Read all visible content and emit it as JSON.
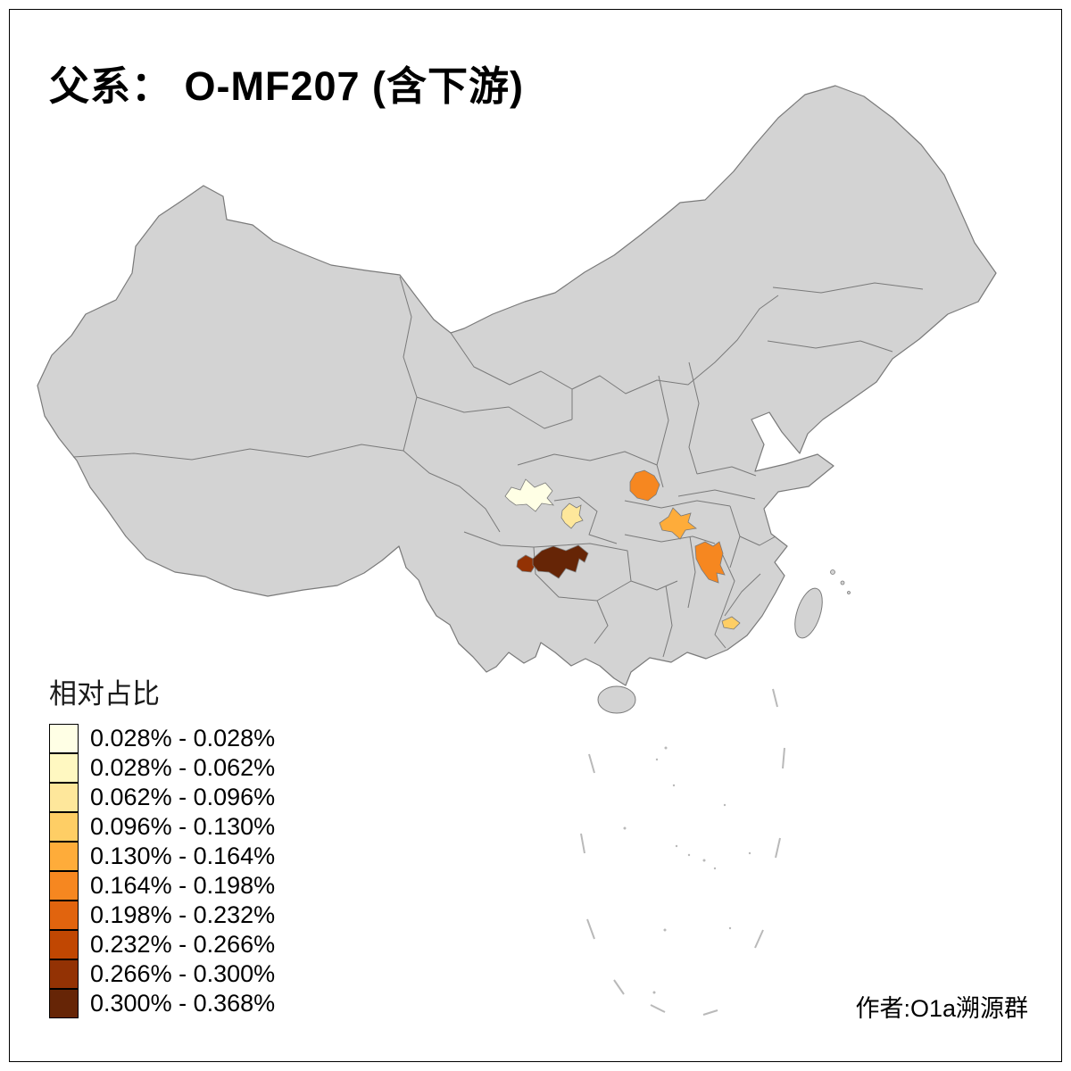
{
  "title": "父系： O-MF207 (含下游)",
  "legend": {
    "title": "相对占比",
    "items": [
      {
        "label": "0.028% - 0.028%",
        "color": "#FFFFE5"
      },
      {
        "label": "0.028% - 0.062%",
        "color": "#FFF8C1"
      },
      {
        "label": "0.062% - 0.096%",
        "color": "#FEE79B"
      },
      {
        "label": "0.096% - 0.130%",
        "color": "#FECE65"
      },
      {
        "label": "0.130% - 0.164%",
        "color": "#FEAC3A"
      },
      {
        "label": "0.164% - 0.198%",
        "color": "#F68720"
      },
      {
        "label": "0.198% - 0.232%",
        "color": "#E1640E"
      },
      {
        "label": "0.232% - 0.266%",
        "color": "#C14702"
      },
      {
        "label": "0.266% - 0.300%",
        "color": "#933204"
      },
      {
        "label": "0.300% - 0.368%",
        "color": "#662506"
      }
    ]
  },
  "credit": "作者:O1a溯源群",
  "map": {
    "land_color": "#d3d3d3",
    "border_color": "#7a7a7a",
    "minor_color": "#b9b9b9",
    "background": "#ffffff",
    "regions": [
      {
        "id": "highlight-region-1",
        "color": "#FFFFE5",
        "legend_class": "0.028% - 0.028%"
      },
      {
        "id": "highlight-region-2",
        "color": "#FEE79B",
        "legend_class": "0.062% - 0.096%"
      },
      {
        "id": "highlight-region-3",
        "color": "#F68720",
        "legend_class": "0.164% - 0.198%"
      },
      {
        "id": "highlight-region-4",
        "color": "#FEAC3A",
        "legend_class": "0.130% - 0.164%"
      },
      {
        "id": "highlight-region-5",
        "color": "#F68720",
        "legend_class": "0.164% - 0.198%"
      },
      {
        "id": "highlight-region-6",
        "color": "#933204",
        "legend_class": "0.266% - 0.300%"
      },
      {
        "id": "highlight-region-7",
        "color": "#662506",
        "legend_class": "0.300% - 0.368%"
      },
      {
        "id": "highlight-region-8",
        "color": "#FECE65",
        "legend_class": "0.096% - 0.130%"
      }
    ]
  }
}
